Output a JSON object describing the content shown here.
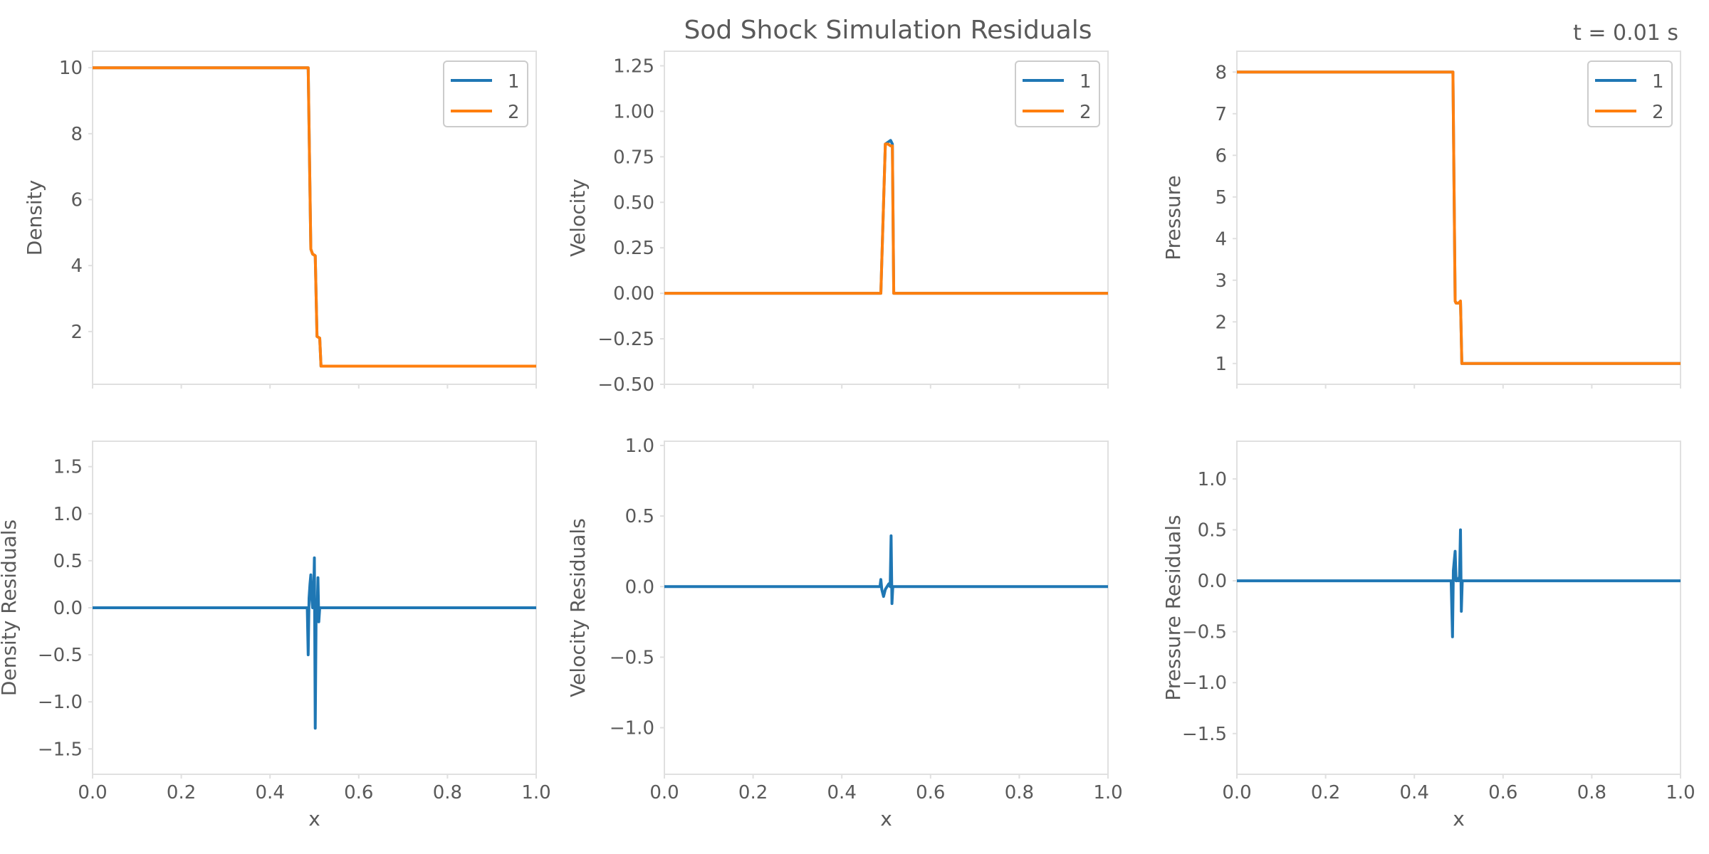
{
  "figure": {
    "title": "Sod Shock Simulation Residuals",
    "time_label": "t = 0.01 s"
  },
  "colors": {
    "series_1": "#1f77b4",
    "series_2": "#ff7f0e",
    "frame": "#e0e0e0",
    "text": "#5a5a5a"
  },
  "chart_data": [
    {
      "id": "density",
      "type": "line",
      "ylabel": "Density",
      "xlim": [
        0,
        1
      ],
      "ylim": [
        0.4,
        10.5
      ],
      "yticks": [
        2,
        4,
        6,
        8,
        10
      ],
      "ytick_labels": [
        "2",
        "4",
        "6",
        "8",
        "10"
      ],
      "legend": {
        "position": "top-right"
      },
      "series": [
        {
          "name": "1",
          "color": "#1f77b4",
          "x": [
            0,
            0.486,
            0.492,
            0.496,
            0.502,
            0.506,
            0.512,
            0.515,
            0.518,
            1.0
          ],
          "y": [
            10,
            10,
            4.5,
            4.35,
            4.3,
            1.85,
            1.8,
            0.95,
            0.95,
            0.95
          ]
        },
        {
          "name": "2",
          "color": "#ff7f0e",
          "x": [
            0,
            0.486,
            0.492,
            0.496,
            0.502,
            0.506,
            0.512,
            0.515,
            0.518,
            1.0
          ],
          "y": [
            10,
            10,
            4.5,
            4.35,
            4.3,
            1.85,
            1.8,
            0.95,
            0.95,
            0.95
          ]
        }
      ]
    },
    {
      "id": "velocity",
      "type": "line",
      "ylabel": "Velocity",
      "xlim": [
        0,
        1
      ],
      "ylim": [
        -0.5,
        1.33
      ],
      "yticks": [
        -0.5,
        -0.25,
        0.0,
        0.25,
        0.5,
        0.75,
        1.0,
        1.25
      ],
      "ytick_labels": [
        "−0.50",
        "−0.25",
        "0.00",
        "0.25",
        "0.50",
        "0.75",
        "1.00",
        "1.25"
      ],
      "legend": {
        "position": "top-right"
      },
      "series": [
        {
          "name": "1",
          "color": "#1f77b4",
          "x": [
            0,
            0.488,
            0.498,
            0.504,
            0.51,
            0.514,
            0.517,
            1.0
          ],
          "y": [
            0,
            0,
            0.82,
            0.83,
            0.84,
            0.82,
            0,
            0
          ]
        },
        {
          "name": "2",
          "color": "#ff7f0e",
          "x": [
            0,
            0.488,
            0.498,
            0.504,
            0.51,
            0.514,
            0.517,
            1.0
          ],
          "y": [
            0,
            0,
            0.82,
            0.82,
            0.81,
            0.81,
            0,
            0
          ]
        }
      ]
    },
    {
      "id": "pressure",
      "type": "line",
      "ylabel": "Pressure",
      "xlim": [
        0,
        1
      ],
      "ylim": [
        0.5,
        8.5
      ],
      "yticks": [
        1,
        2,
        3,
        4,
        5,
        6,
        7,
        8
      ],
      "ytick_labels": [
        "1",
        "2",
        "3",
        "4",
        "5",
        "6",
        "7",
        "8"
      ],
      "legend": {
        "position": "top-right"
      },
      "series": [
        {
          "name": "1",
          "color": "#1f77b4",
          "x": [
            0,
            0.487,
            0.492,
            0.494,
            0.5,
            0.504,
            0.507,
            0.51,
            1.0
          ],
          "y": [
            8,
            8,
            2.5,
            2.45,
            2.45,
            2.5,
            1.0,
            1.0,
            1.0
          ]
        },
        {
          "name": "2",
          "color": "#ff7f0e",
          "x": [
            0,
            0.487,
            0.492,
            0.494,
            0.5,
            0.504,
            0.507,
            0.51,
            1.0
          ],
          "y": [
            8,
            8,
            2.5,
            2.45,
            2.45,
            2.5,
            1.0,
            1.0,
            1.0
          ]
        }
      ]
    },
    {
      "id": "density_residuals",
      "type": "line",
      "ylabel": "Density Residuals",
      "xlabel": "x",
      "xlim": [
        0,
        1
      ],
      "ylim": [
        -1.77,
        1.77
      ],
      "xticks": [
        0,
        0.2,
        0.4,
        0.6,
        0.8,
        1.0
      ],
      "xtick_labels": [
        "0.0",
        "0.2",
        "0.4",
        "0.6",
        "0.8",
        "1.0"
      ],
      "yticks": [
        -1.5,
        -1.0,
        -0.5,
        0.0,
        0.5,
        1.0,
        1.5
      ],
      "ytick_labels": [
        "−1.5",
        "−1.0",
        "−0.5",
        "0.0",
        "0.5",
        "1.0",
        "1.5"
      ],
      "series": [
        {
          "color": "#1f77b4",
          "x": [
            0,
            0.484,
            0.486,
            0.488,
            0.49,
            0.492,
            0.494,
            0.496,
            0.498,
            0.5,
            0.502,
            0.504,
            0.506,
            0.508,
            0.51,
            0.512,
            0.514,
            0.516,
            0.518,
            0.52,
            1.0
          ],
          "y": [
            0,
            0,
            -0.5,
            0.1,
            0.25,
            0.35,
            0.1,
            0,
            0.05,
            0.53,
            -1.28,
            0.0,
            -0.1,
            0.32,
            -0.15,
            0.0,
            0,
            0,
            0,
            0,
            0
          ]
        }
      ]
    },
    {
      "id": "velocity_residuals",
      "type": "line",
      "ylabel": "Velocity Residuals",
      "xlabel": "x",
      "xlim": [
        0,
        1
      ],
      "ylim": [
        -1.33,
        1.03
      ],
      "xticks": [
        0,
        0.2,
        0.4,
        0.6,
        0.8,
        1.0
      ],
      "xtick_labels": [
        "0.0",
        "0.2",
        "0.4",
        "0.6",
        "0.8",
        "1.0"
      ],
      "yticks": [
        -1.0,
        -0.5,
        0.0,
        0.5,
        1.0
      ],
      "ytick_labels": [
        "−1.0",
        "−0.5",
        "0.0",
        "0.5",
        "1.0"
      ],
      "series": [
        {
          "color": "#1f77b4",
          "x": [
            0,
            0.486,
            0.488,
            0.49,
            0.494,
            0.498,
            0.502,
            0.506,
            0.509,
            0.511,
            0.513,
            0.515,
            0.517,
            1.0
          ],
          "y": [
            0,
            0,
            0.05,
            -0.02,
            -0.07,
            -0.02,
            0.0,
            0.02,
            0.0,
            0.36,
            -0.12,
            0.0,
            0,
            0
          ]
        }
      ]
    },
    {
      "id": "pressure_residuals",
      "type": "line",
      "ylabel": "Pressure Residuals",
      "xlabel": "x",
      "xlim": [
        0,
        1
      ],
      "ylim": [
        -1.9,
        1.37
      ],
      "xticks": [
        0,
        0.2,
        0.4,
        0.6,
        0.8,
        1.0
      ],
      "xtick_labels": [
        "0.0",
        "0.2",
        "0.4",
        "0.6",
        "0.8",
        "1.0"
      ],
      "yticks": [
        -1.5,
        -1.0,
        -0.5,
        0.0,
        0.5,
        1.0
      ],
      "ytick_labels": [
        "−1.5",
        "−1.0",
        "−0.5",
        "0.0",
        "0.5",
        "1.0"
      ],
      "series": [
        {
          "color": "#1f77b4",
          "x": [
            0,
            0.483,
            0.486,
            0.488,
            0.49,
            0.492,
            0.494,
            0.496,
            0.498,
            0.5,
            0.502,
            0.504,
            0.506,
            0.508,
            0.51,
            0.512,
            1.0
          ],
          "y": [
            0,
            0,
            -0.55,
            0.1,
            0.2,
            0.29,
            0.0,
            0.0,
            0.02,
            0.0,
            0.05,
            0.5,
            -0.3,
            0.0,
            0,
            0,
            0
          ]
        }
      ]
    }
  ]
}
